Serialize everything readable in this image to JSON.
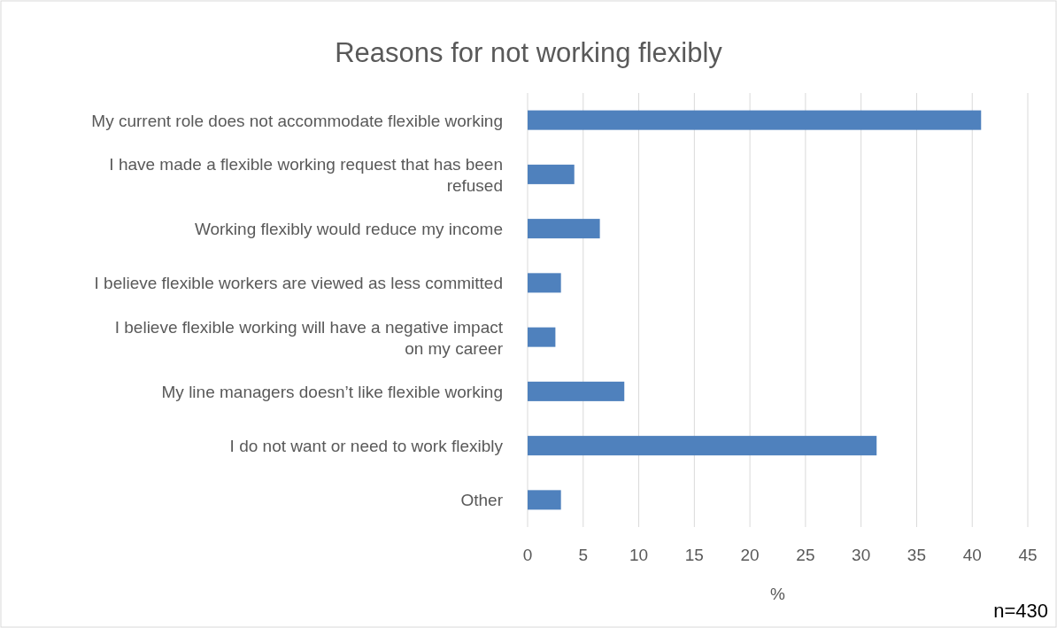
{
  "chart_data": {
    "type": "bar",
    "orientation": "horizontal",
    "title": "Reasons for not working flexibly",
    "xlabel": "%",
    "annotations": [
      "n=430"
    ],
    "categories": [
      "My current role does not accommodate flexible working",
      "I have made a flexible working request that has been refused",
      "Working flexibly would reduce my income",
      "I believe flexible workers are viewed as less committed",
      "I believe flexible working will have a negative impact on my career",
      "My line managers doesn’t like flexible working",
      "I do not want or need to work flexibly",
      "Other"
    ],
    "values": [
      40.8,
      4.2,
      6.5,
      3.0,
      2.5,
      8.7,
      31.4,
      3.0
    ],
    "color": "#4f81bd",
    "xlim": [
      0,
      45
    ],
    "xticks": [
      0,
      5,
      10,
      15,
      20,
      25,
      30,
      35,
      40,
      45
    ],
    "grid": "x"
  }
}
